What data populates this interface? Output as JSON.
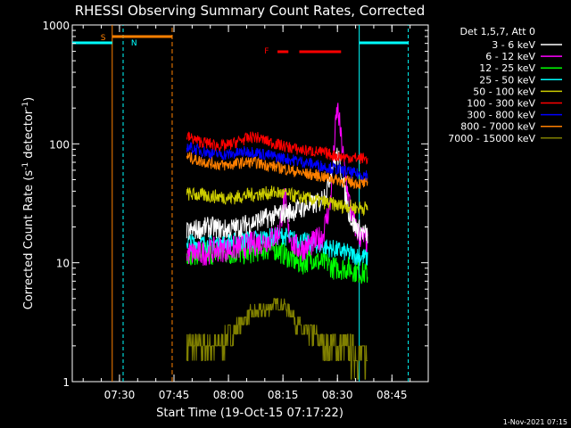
{
  "chart_data": {
    "type": "line",
    "title": "RHESSI Observing Summary Count Rates, Corrected",
    "xlabel": "Start Time (19-Oct-15 07:17:22)",
    "ylabel_main": "Corrected Count Rate (s",
    "ylabel_sup1": "-1",
    "ylabel_mid": " detector",
    "ylabel_sup2": "-1",
    "ylabel_end": ")",
    "timestamp": "1-Nov-2021 07:15",
    "y_scale": "log",
    "ylim": [
      1,
      1000
    ],
    "xlim_minutes_after_0717": [
      0,
      98
    ],
    "y_ticks": [
      {
        "value": 1,
        "label": "1"
      },
      {
        "value": 10,
        "label": "10"
      },
      {
        "value": 100,
        "label": "100"
      },
      {
        "value": 1000,
        "label": "1000"
      }
    ],
    "x_ticks": [
      {
        "minute": 13,
        "label": "07:30"
      },
      {
        "minute": 28,
        "label": "07:45"
      },
      {
        "minute": 43,
        "label": "08:00"
      },
      {
        "minute": 58,
        "label": "08:15"
      },
      {
        "minute": 73,
        "label": "08:30"
      },
      {
        "minute": 88,
        "label": "08:45"
      }
    ],
    "legend_header": "Det 1,5,7, Att 0",
    "series": [
      {
        "name": "3 - 6 keV",
        "color": "#ffffff",
        "points": [
          [
            31.5,
            18
          ],
          [
            34,
            19
          ],
          [
            38,
            20
          ],
          [
            42,
            19
          ],
          [
            46,
            20
          ],
          [
            50,
            22
          ],
          [
            54,
            24
          ],
          [
            56,
            25
          ],
          [
            58,
            26
          ],
          [
            60,
            27
          ],
          [
            62,
            28
          ],
          [
            65,
            30
          ],
          [
            68,
            32
          ],
          [
            70,
            40
          ],
          [
            72,
            70
          ],
          [
            73,
            80
          ],
          [
            74,
            60
          ],
          [
            75,
            40
          ],
          [
            76,
            28
          ],
          [
            77,
            22
          ],
          [
            78,
            20
          ],
          [
            80,
            18
          ],
          [
            81.3,
            17
          ]
        ]
      },
      {
        "name": "6 - 12 keV",
        "color": "#ff00ff",
        "points": [
          [
            31.5,
            12
          ],
          [
            36,
            12
          ],
          [
            40,
            13
          ],
          [
            44,
            13
          ],
          [
            48,
            14
          ],
          [
            52,
            15
          ],
          [
            55,
            16
          ],
          [
            57,
            18
          ],
          [
            58.5,
            35
          ],
          [
            59.5,
            18
          ],
          [
            61,
            14
          ],
          [
            63,
            13
          ],
          [
            65,
            14
          ],
          [
            67,
            15
          ],
          [
            69,
            17
          ],
          [
            71,
            30
          ],
          [
            72,
            80
          ],
          [
            73,
            200
          ],
          [
            74,
            110
          ],
          [
            75,
            60
          ],
          [
            76,
            35
          ],
          [
            77,
            25
          ],
          [
            78,
            20
          ],
          [
            79,
            17
          ],
          [
            81.3,
            15
          ]
        ]
      },
      {
        "name": "12 - 25 keV",
        "color": "#00ff00",
        "points": [
          [
            31.5,
            12
          ],
          [
            35,
            12
          ],
          [
            40,
            12
          ],
          [
            44,
            12
          ],
          [
            48,
            12
          ],
          [
            52,
            13
          ],
          [
            56,
            13
          ],
          [
            58,
            12
          ],
          [
            60,
            11
          ],
          [
            62,
            10
          ],
          [
            64,
            10
          ],
          [
            66,
            11
          ],
          [
            68,
            10
          ],
          [
            70,
            10
          ],
          [
            72,
            9
          ],
          [
            74,
            9
          ],
          [
            76,
            9
          ],
          [
            78,
            8.5
          ],
          [
            81.3,
            8
          ]
        ]
      },
      {
        "name": "25 - 50 keV",
        "color": "#00ffff",
        "points": [
          [
            31.5,
            15
          ],
          [
            35,
            14.5
          ],
          [
            40,
            14.5
          ],
          [
            44,
            15
          ],
          [
            48,
            15.5
          ],
          [
            52,
            16
          ],
          [
            56,
            16.5
          ],
          [
            58,
            17
          ],
          [
            60,
            16
          ],
          [
            62,
            15.5
          ],
          [
            64,
            15
          ],
          [
            66,
            14.5
          ],
          [
            68,
            14
          ],
          [
            70,
            13.5
          ],
          [
            72,
            13
          ],
          [
            74,
            12.5
          ],
          [
            76,
            12
          ],
          [
            78,
            11.5
          ],
          [
            81.3,
            11
          ]
        ]
      },
      {
        "name": "50 - 100 keV",
        "color": "#cccc00",
        "points": [
          [
            31.5,
            38
          ],
          [
            35,
            37
          ],
          [
            40,
            36
          ],
          [
            44,
            35
          ],
          [
            48,
            37
          ],
          [
            52,
            38
          ],
          [
            56,
            39
          ],
          [
            58,
            38
          ],
          [
            60,
            37
          ],
          [
            62,
            36
          ],
          [
            64,
            35
          ],
          [
            66,
            34
          ],
          [
            68,
            33
          ],
          [
            70,
            32
          ],
          [
            72,
            31
          ],
          [
            74,
            30
          ],
          [
            76,
            30
          ],
          [
            78,
            29
          ],
          [
            81.3,
            29
          ]
        ]
      },
      {
        "name": "100 - 300 keV",
        "color": "#ff0000",
        "points": [
          [
            31.5,
            115
          ],
          [
            35,
            105
          ],
          [
            38,
            100
          ],
          [
            40,
            97
          ],
          [
            42,
            96
          ],
          [
            44,
            100
          ],
          [
            46,
            106
          ],
          [
            48,
            110
          ],
          [
            50,
            115
          ],
          [
            52,
            110
          ],
          [
            54,
            104
          ],
          [
            56,
            100
          ],
          [
            58,
            96
          ],
          [
            60,
            93
          ],
          [
            62,
            90
          ],
          [
            64,
            88
          ],
          [
            66,
            87
          ],
          [
            68,
            85
          ],
          [
            70,
            83
          ],
          [
            72,
            80
          ],
          [
            74,
            78
          ],
          [
            76,
            77
          ],
          [
            78,
            76
          ],
          [
            81.3,
            75
          ]
        ]
      },
      {
        "name": "300 - 800 keV",
        "color": "#0000ff",
        "points": [
          [
            31.5,
            95
          ],
          [
            35,
            88
          ],
          [
            38,
            84
          ],
          [
            40,
            82
          ],
          [
            42,
            81
          ],
          [
            44,
            82
          ],
          [
            46,
            84
          ],
          [
            48,
            86
          ],
          [
            50,
            86
          ],
          [
            52,
            83
          ],
          [
            54,
            80
          ],
          [
            56,
            78
          ],
          [
            58,
            76
          ],
          [
            60,
            74
          ],
          [
            62,
            72
          ],
          [
            64,
            70
          ],
          [
            66,
            68
          ],
          [
            68,
            66
          ],
          [
            70,
            64
          ],
          [
            72,
            62
          ],
          [
            74,
            60
          ],
          [
            76,
            58
          ],
          [
            78,
            56
          ],
          [
            81.3,
            55
          ]
        ]
      },
      {
        "name": "800 - 7000 keV",
        "color": "#ff8000",
        "points": [
          [
            31.5,
            78
          ],
          [
            35,
            72
          ],
          [
            38,
            69
          ],
          [
            40,
            67
          ],
          [
            42,
            66
          ],
          [
            44,
            67
          ],
          [
            46,
            69
          ],
          [
            48,
            70
          ],
          [
            50,
            70
          ],
          [
            52,
            68
          ],
          [
            54,
            66
          ],
          [
            56,
            64
          ],
          [
            58,
            62
          ],
          [
            60,
            60
          ],
          [
            62,
            58
          ],
          [
            64,
            56
          ],
          [
            66,
            55
          ],
          [
            68,
            54
          ],
          [
            70,
            52
          ],
          [
            72,
            51
          ],
          [
            74,
            49
          ],
          [
            76,
            48
          ],
          [
            78,
            47
          ],
          [
            81.3,
            46
          ]
        ]
      },
      {
        "name": "7000 - 15000 keV",
        "color": "#808000",
        "points": [
          [
            31.5,
            2
          ],
          [
            36,
            2
          ],
          [
            40,
            2
          ],
          [
            44,
            2.5
          ],
          [
            46,
            3
          ],
          [
            48,
            3.5
          ],
          [
            50,
            3.8
          ],
          [
            52,
            4
          ],
          [
            54,
            4.2
          ],
          [
            56,
            4.5
          ],
          [
            58,
            4.5
          ],
          [
            60,
            4
          ],
          [
            62,
            3
          ],
          [
            64,
            2.5
          ],
          [
            66,
            2.5
          ],
          [
            68,
            2.2
          ],
          [
            70,
            2
          ],
          [
            72,
            2
          ],
          [
            74,
            2
          ],
          [
            76,
            1.8
          ],
          [
            78,
            1.7
          ],
          [
            81.3,
            1.6
          ]
        ]
      }
    ],
    "markers": [
      {
        "label": "S",
        "color": "#ff8000"
      },
      {
        "label": "N",
        "color": "#00ffff"
      },
      {
        "label": "F",
        "color": "#ff0000"
      }
    ]
  }
}
